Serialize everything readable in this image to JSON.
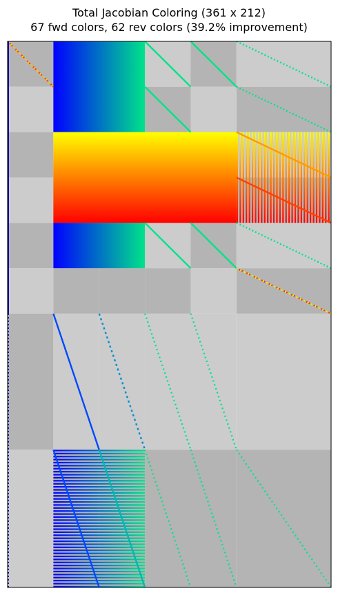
{
  "title_line1": "Total Jacobian Coloring (361 x 212)",
  "title_line2": "67 fwd colors, 62 rev colors (39.2% improvement)",
  "chart_data": {
    "type": "heatmap",
    "rows": 361,
    "cols": 212,
    "fwd_colors": 67,
    "rev_colors": 62,
    "improvement_percent": 39.2,
    "colormaps": {
      "fwd": [
        "#0000ff",
        "#00e38a"
      ],
      "rev": [
        "#ffff00",
        "#ff0000"
      ]
    },
    "shading": {
      "light": "#cccccc",
      "dark": "#b4b4b4"
    },
    "row_bounds": [
      0,
      30,
      60,
      90,
      120,
      150,
      180,
      270,
      361
    ],
    "col_bounds": [
      0,
      30,
      60,
      90,
      120,
      150,
      212
    ],
    "grid_dark": [
      [
        1,
        0,
        0,
        0,
        1,
        0
      ],
      [
        0,
        1,
        1,
        1,
        0,
        1
      ],
      [
        1,
        0,
        0,
        0,
        1,
        0
      ],
      [
        0,
        1,
        1,
        1,
        0,
        1
      ],
      [
        1,
        0,
        0,
        0,
        1,
        0
      ],
      [
        0,
        1,
        1,
        1,
        0,
        1
      ],
      [
        1,
        0,
        0,
        0,
        0,
        0
      ],
      [
        0,
        1,
        1,
        1,
        1,
        1
      ]
    ],
    "dense_blocks": [
      {
        "rows": [
          0,
          60
        ],
        "cols": [
          30,
          90
        ],
        "mode": "fwd"
      },
      {
        "rows": [
          60,
          120
        ],
        "cols": [
          30,
          150
        ],
        "mode": "rev"
      },
      {
        "rows": [
          120,
          150
        ],
        "cols": [
          30,
          90
        ],
        "mode": "fwd"
      },
      {
        "rows": [
          60,
          120
        ],
        "cols": [
          150,
          212
        ],
        "mode": "rev-columns"
      },
      {
        "rows": [
          270,
          361
        ],
        "cols": [
          30,
          90
        ],
        "mode": "fwd-rows"
      }
    ]
  }
}
